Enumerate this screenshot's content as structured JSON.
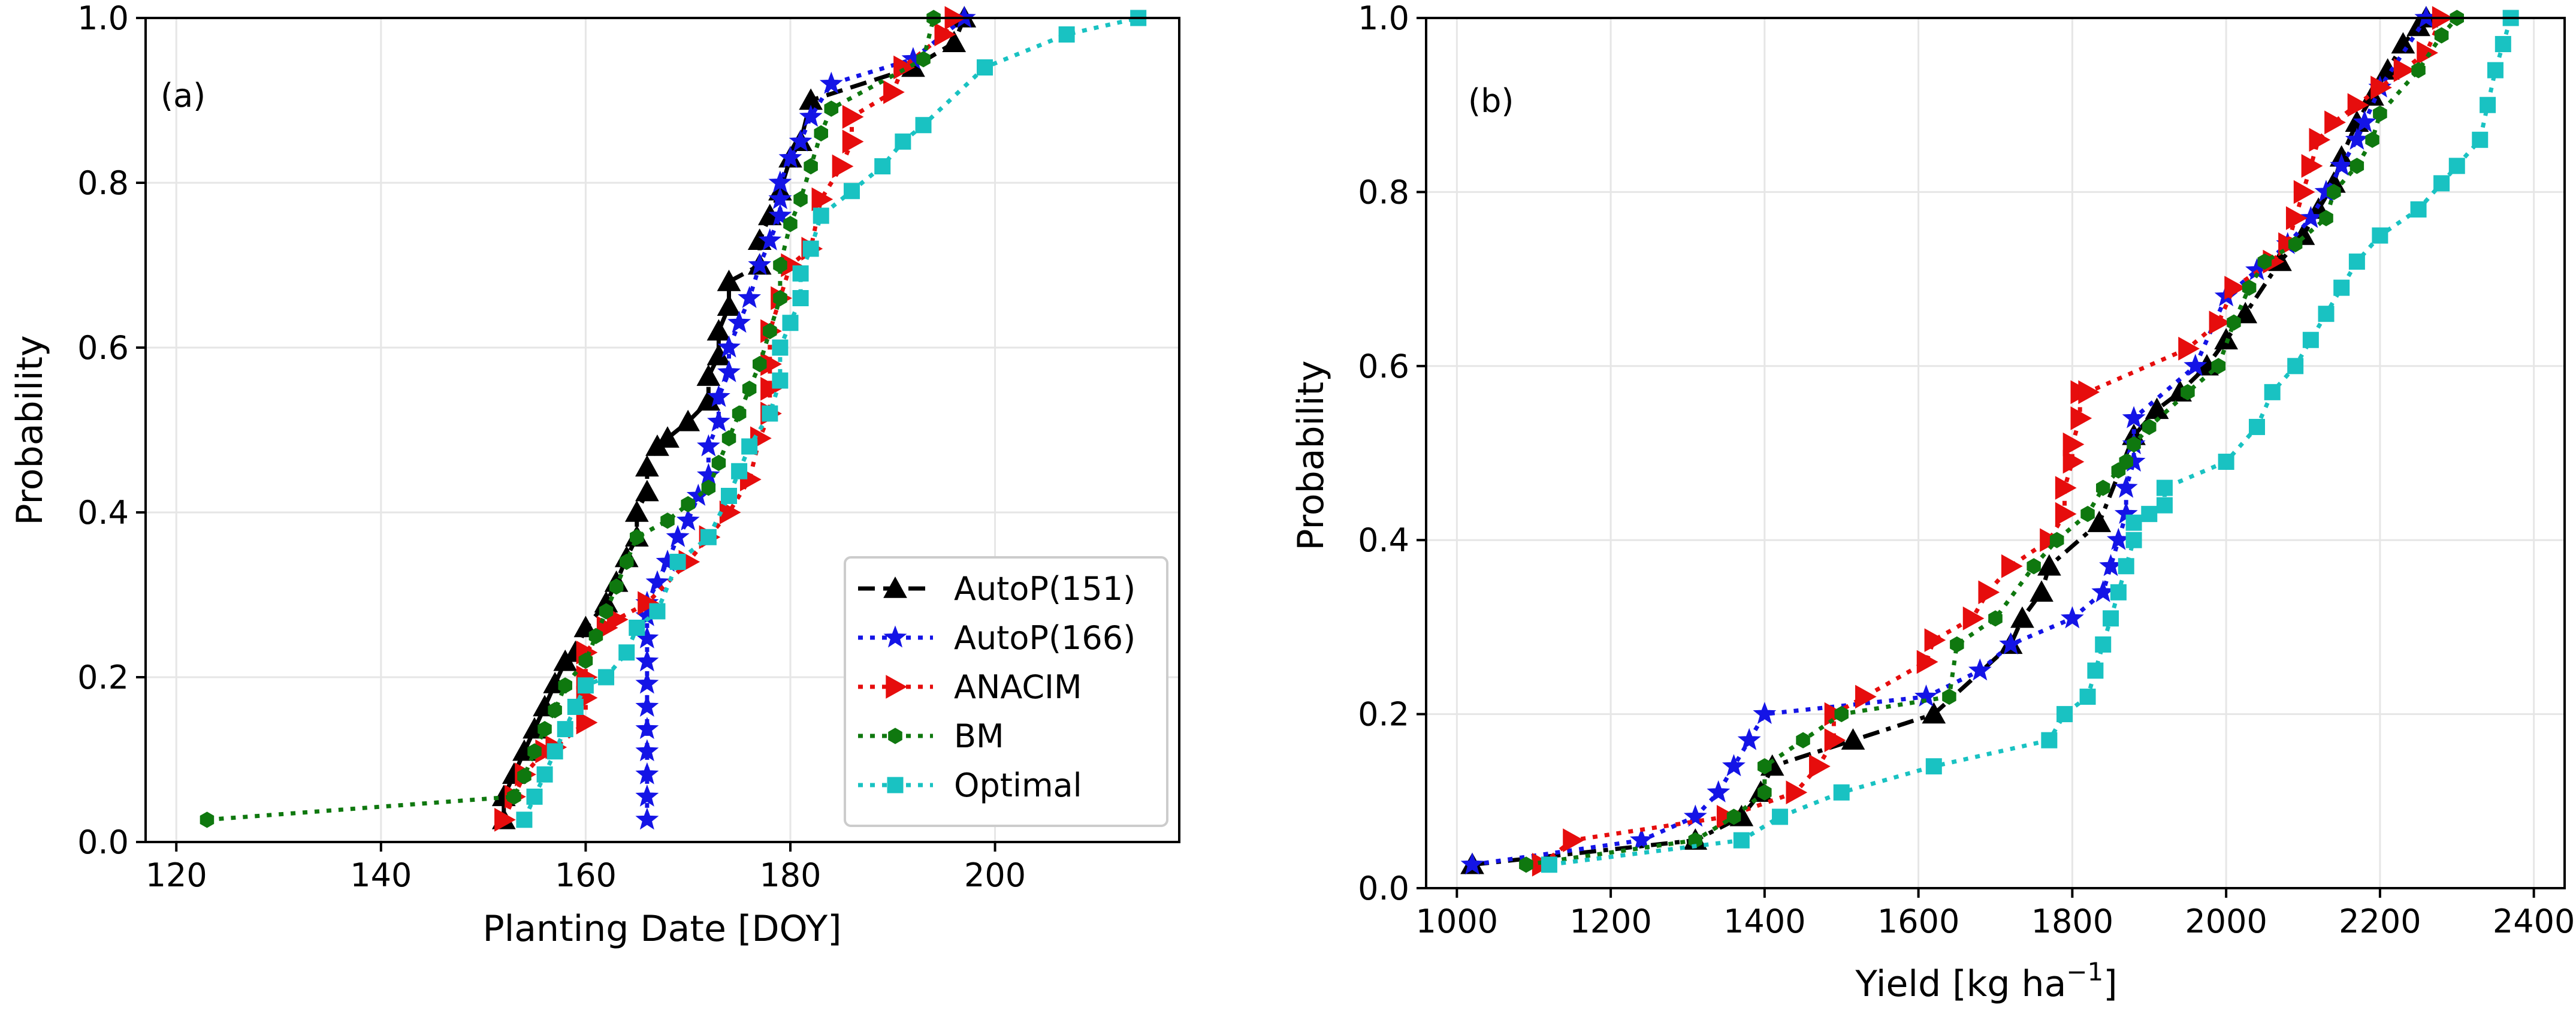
{
  "chart_data": [
    {
      "type": "line",
      "panel": "(a)",
      "xlabel": "Planting Date [DOY]",
      "ylabel": "Probability",
      "xlim": [
        117,
        218
      ],
      "ylim": [
        0,
        1.0
      ],
      "xticks": [
        120,
        140,
        160,
        180,
        200
      ],
      "yticks": [
        0.0,
        0.2,
        0.4,
        0.6,
        0.8,
        1.0
      ],
      "grid": true,
      "legend_location": "lower right",
      "series": [
        {
          "name": "AutoP(151)",
          "color": "#000000",
          "marker": "triangle-up",
          "linestyle": "dashed",
          "x": [
            152,
            152,
            153,
            154,
            155,
            156,
            157,
            158,
            159,
            160,
            162,
            163,
            164,
            165,
            165,
            166,
            166,
            167,
            168,
            170,
            172,
            172,
            173,
            173,
            174,
            174,
            177,
            177,
            178,
            179,
            180,
            181,
            182,
            192,
            196,
            197
          ],
          "y": [
            0.027,
            0.055,
            0.082,
            0.11,
            0.137,
            0.164,
            0.192,
            0.219,
            0.23,
            0.26,
            0.29,
            0.315,
            0.345,
            0.37,
            0.4,
            0.425,
            0.455,
            0.48,
            0.49,
            0.51,
            0.535,
            0.565,
            0.59,
            0.62,
            0.65,
            0.68,
            0.7,
            0.73,
            0.76,
            0.79,
            0.83,
            0.85,
            0.9,
            0.94,
            0.97,
            1.0
          ]
        },
        {
          "name": "AutoP(166)",
          "color": "#1414e6",
          "marker": "star",
          "linestyle": "dotted",
          "x": [
            166,
            166,
            166,
            166,
            166,
            166,
            166,
            166,
            166,
            166,
            166,
            167,
            168,
            169,
            170,
            171,
            172,
            172,
            173,
            173,
            174,
            174,
            175,
            176,
            177,
            178,
            179,
            179,
            179,
            180,
            181,
            182,
            184,
            192,
            197
          ],
          "y": [
            0.027,
            0.055,
            0.082,
            0.11,
            0.137,
            0.164,
            0.192,
            0.219,
            0.247,
            0.274,
            0.29,
            0.315,
            0.34,
            0.37,
            0.39,
            0.42,
            0.445,
            0.48,
            0.51,
            0.54,
            0.57,
            0.6,
            0.63,
            0.66,
            0.7,
            0.73,
            0.76,
            0.78,
            0.8,
            0.83,
            0.85,
            0.88,
            0.92,
            0.95,
            1.0
          ]
        },
        {
          "name": "ANACIM",
          "color": "#e60d0d",
          "marker": "triangle-right",
          "linestyle": "dotted",
          "x": [
            152,
            153,
            154,
            156,
            157,
            160,
            160,
            160,
            160,
            162,
            163,
            166,
            170,
            172,
            174,
            176,
            177,
            178,
            178,
            178,
            178,
            179,
            180,
            182,
            183,
            185,
            186,
            186,
            190,
            191,
            195,
            196
          ],
          "y": [
            0.027,
            0.055,
            0.082,
            0.11,
            0.115,
            0.145,
            0.175,
            0.2,
            0.23,
            0.26,
            0.27,
            0.29,
            0.34,
            0.37,
            0.4,
            0.44,
            0.49,
            0.52,
            0.55,
            0.58,
            0.62,
            0.66,
            0.7,
            0.72,
            0.78,
            0.82,
            0.85,
            0.88,
            0.91,
            0.94,
            0.98,
            1.0
          ]
        },
        {
          "name": "BM",
          "color": "#0f780f",
          "marker": "hexagon",
          "linestyle": "dotted",
          "x": [
            123,
            153,
            154,
            155,
            156,
            157,
            158,
            160,
            161,
            162,
            163,
            164,
            165,
            168,
            170,
            172,
            173,
            174,
            175,
            176,
            177,
            178,
            179,
            179,
            180,
            181,
            182,
            183,
            184,
            193,
            194
          ],
          "y": [
            0.027,
            0.055,
            0.08,
            0.11,
            0.137,
            0.16,
            0.19,
            0.22,
            0.25,
            0.28,
            0.31,
            0.34,
            0.37,
            0.39,
            0.41,
            0.43,
            0.46,
            0.49,
            0.52,
            0.55,
            0.58,
            0.62,
            0.66,
            0.7,
            0.75,
            0.78,
            0.82,
            0.86,
            0.89,
            0.95,
            1.0
          ]
        },
        {
          "name": "Optimal",
          "color": "#19c2c2",
          "marker": "square",
          "linestyle": "dotted",
          "x": [
            154,
            155,
            156,
            157,
            158,
            159,
            160,
            162,
            164,
            165,
            167,
            169,
            172,
            174,
            175,
            176,
            178,
            179,
            179,
            180,
            181,
            181,
            182,
            183,
            186,
            189,
            191,
            193,
            199,
            207,
            214
          ],
          "y": [
            0.027,
            0.055,
            0.082,
            0.11,
            0.137,
            0.164,
            0.19,
            0.2,
            0.23,
            0.26,
            0.28,
            0.34,
            0.37,
            0.42,
            0.45,
            0.48,
            0.52,
            0.56,
            0.6,
            0.63,
            0.66,
            0.69,
            0.72,
            0.76,
            0.79,
            0.82,
            0.85,
            0.87,
            0.94,
            0.98,
            1.0
          ]
        }
      ]
    },
    {
      "type": "line",
      "panel": "(b)",
      "xlabel": "Yield [kg ha",
      "xlabel_superscript": "−1",
      "xlabel_suffix": "]",
      "ylabel": "Probability",
      "xlim": [
        960,
        2440
      ],
      "ylim": [
        0,
        1.0
      ],
      "xticks": [
        1000,
        1200,
        1400,
        1600,
        1800,
        2000,
        2200,
        2400
      ],
      "yticks": [
        0.0,
        0.2,
        0.4,
        0.6,
        0.8,
        1.0
      ],
      "grid": true,
      "series": [
        {
          "name": "AutoP(151)",
          "color": "#000000",
          "marker": "triangle-up",
          "linestyle": "dashdot",
          "x": [
            1020,
            1310,
            1370,
            1395,
            1410,
            1515,
            1620,
            1720,
            1735,
            1760,
            1770,
            1835,
            1880,
            1910,
            1940,
            1975,
            2000,
            2025,
            2070,
            2100,
            2120,
            2140,
            2150,
            2170,
            2190,
            2210,
            2230,
            2250,
            2260
          ],
          "y": [
            0.027,
            0.055,
            0.082,
            0.11,
            0.14,
            0.17,
            0.2,
            0.28,
            0.31,
            0.34,
            0.37,
            0.42,
            0.52,
            0.55,
            0.57,
            0.6,
            0.63,
            0.66,
            0.72,
            0.75,
            0.78,
            0.81,
            0.84,
            0.88,
            0.91,
            0.94,
            0.97,
            0.99,
            1.0
          ]
        },
        {
          "name": "AutoP(166)",
          "color": "#1414e6",
          "marker": "star",
          "linestyle": "dotted",
          "x": [
            1020,
            1240,
            1310,
            1340,
            1360,
            1380,
            1400,
            1610,
            1680,
            1720,
            1800,
            1840,
            1850,
            1860,
            1870,
            1870,
            1880,
            1880,
            1880,
            1960,
            2000,
            2040,
            2080,
            2110,
            2130,
            2150,
            2170,
            2180,
            2200,
            2260
          ],
          "y": [
            0.027,
            0.055,
            0.082,
            0.11,
            0.14,
            0.17,
            0.2,
            0.22,
            0.25,
            0.28,
            0.31,
            0.34,
            0.37,
            0.4,
            0.43,
            0.46,
            0.49,
            0.51,
            0.54,
            0.6,
            0.68,
            0.71,
            0.74,
            0.77,
            0.8,
            0.83,
            0.86,
            0.88,
            0.92,
            1.0
          ]
        },
        {
          "name": "ANACIM",
          "color": "#e60d0d",
          "marker": "triangle-right",
          "linestyle": "dotted",
          "x": [
            1110,
            1150,
            1350,
            1440,
            1470,
            1490,
            1490,
            1530,
            1610,
            1620,
            1670,
            1690,
            1720,
            1770,
            1790,
            1790,
            1800,
            1800,
            1810,
            1810,
            1820,
            1950,
            1990,
            2010,
            2060,
            2080,
            2090,
            2100,
            2110,
            2120,
            2140,
            2170,
            2200,
            2230,
            2260,
            2280
          ],
          "y": [
            0.027,
            0.055,
            0.082,
            0.11,
            0.14,
            0.17,
            0.2,
            0.22,
            0.26,
            0.285,
            0.31,
            0.34,
            0.37,
            0.4,
            0.43,
            0.46,
            0.49,
            0.51,
            0.54,
            0.57,
            0.57,
            0.62,
            0.65,
            0.69,
            0.72,
            0.74,
            0.77,
            0.8,
            0.83,
            0.86,
            0.88,
            0.9,
            0.92,
            0.94,
            0.96,
            1.0
          ]
        },
        {
          "name": "BM",
          "color": "#0f780f",
          "marker": "hexagon",
          "linestyle": "dotted",
          "x": [
            1090,
            1310,
            1360,
            1400,
            1400,
            1450,
            1500,
            1640,
            1650,
            1700,
            1750,
            1780,
            1820,
            1840,
            1860,
            1870,
            1880,
            1900,
            1950,
            1990,
            2010,
            2030,
            2050,
            2090,
            2130,
            2140,
            2170,
            2190,
            2200,
            2250,
            2280,
            2300
          ],
          "y": [
            0.027,
            0.055,
            0.082,
            0.11,
            0.14,
            0.17,
            0.2,
            0.22,
            0.28,
            0.31,
            0.37,
            0.4,
            0.43,
            0.46,
            0.48,
            0.49,
            0.51,
            0.53,
            0.57,
            0.6,
            0.65,
            0.69,
            0.72,
            0.74,
            0.77,
            0.8,
            0.83,
            0.86,
            0.89,
            0.94,
            0.98,
            1.0
          ]
        },
        {
          "name": "Optimal",
          "color": "#19c2c2",
          "marker": "square",
          "linestyle": "dotted",
          "x": [
            1120,
            1370,
            1420,
            1500,
            1620,
            1770,
            1790,
            1820,
            1830,
            1840,
            1850,
            1860,
            1870,
            1880,
            1880,
            1900,
            1920,
            1920,
            2000,
            2040,
            2060,
            2090,
            2110,
            2130,
            2150,
            2170,
            2200,
            2250,
            2280,
            2300,
            2330,
            2340,
            2350,
            2360,
            2370
          ],
          "y": [
            0.027,
            0.055,
            0.082,
            0.11,
            0.14,
            0.17,
            0.2,
            0.22,
            0.25,
            0.28,
            0.31,
            0.34,
            0.37,
            0.4,
            0.42,
            0.43,
            0.44,
            0.46,
            0.49,
            0.53,
            0.57,
            0.6,
            0.63,
            0.66,
            0.69,
            0.72,
            0.75,
            0.78,
            0.81,
            0.83,
            0.86,
            0.9,
            0.94,
            0.97,
            1.0
          ]
        }
      ]
    }
  ]
}
